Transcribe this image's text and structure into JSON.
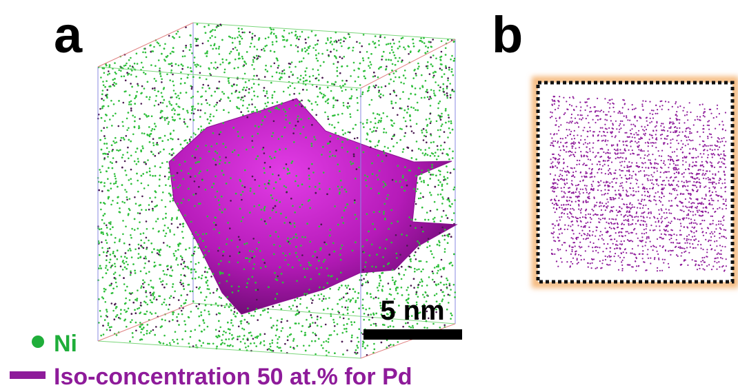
{
  "panel_a": {
    "label": "a",
    "scale_bar": "5 nm"
  },
  "panel_b": {
    "label": "b"
  },
  "legend": {
    "ni": "Ni",
    "iso": "Iso-concentration 50 at.% for Pd"
  }
}
